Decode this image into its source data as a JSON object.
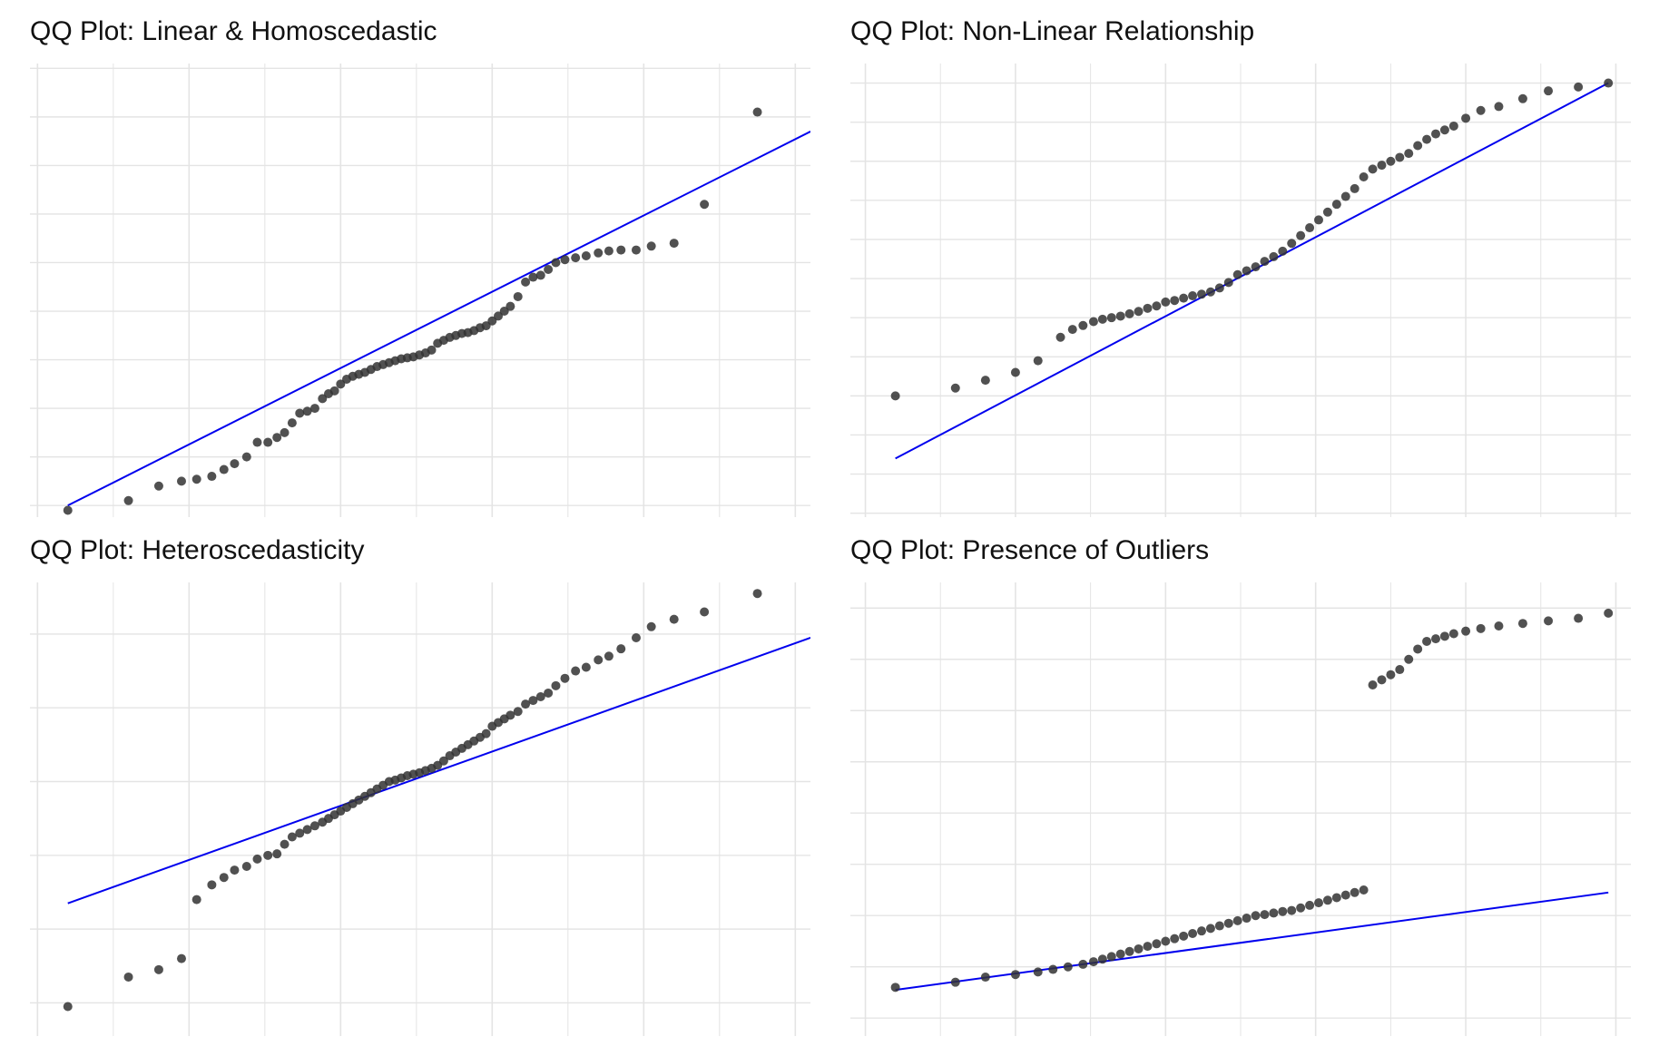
{
  "chart_data": [
    {
      "type": "scatter",
      "title": "QQ Plot: Linear & Homoscedastic",
      "xlabel": "",
      "ylabel": "",
      "xlim": [
        -2.55,
        2.6
      ],
      "ylim": [
        -2.37,
        2.3
      ],
      "grid": true,
      "x_grid": [
        -2.5,
        -2,
        -1.5,
        -1,
        -0.5,
        0,
        0.5,
        1,
        1.5,
        2,
        2.5
      ],
      "y_grid": [
        -2.25,
        -1.75,
        -1.25,
        -0.75,
        -0.25,
        0.25,
        0.75,
        1.25,
        1.75,
        2.25
      ],
      "reference_line": {
        "x": [
          -2.3,
          2.6
        ],
        "y": [
          -2.25,
          1.6
        ]
      },
      "colors": {
        "points": "#333333",
        "line": "#0000ee",
        "grid": "#e4e4e4"
      },
      "points": {
        "x": [
          -2.3,
          -1.9,
          -1.7,
          -1.55,
          -1.45,
          -1.35,
          -1.27,
          -1.2,
          -1.12,
          -1.05,
          -0.98,
          -0.92,
          -0.87,
          -0.82,
          -0.77,
          -0.72,
          -0.67,
          -0.62,
          -0.58,
          -0.54,
          -0.5,
          -0.46,
          -0.42,
          -0.38,
          -0.34,
          -0.3,
          -0.26,
          -0.22,
          -0.18,
          -0.14,
          -0.1,
          -0.06,
          -0.02,
          0.02,
          0.06,
          0.1,
          0.14,
          0.18,
          0.22,
          0.26,
          0.3,
          0.34,
          0.38,
          0.42,
          0.46,
          0.5,
          0.54,
          0.58,
          0.62,
          0.67,
          0.72,
          0.77,
          0.82,
          0.87,
          0.92,
          0.98,
          1.05,
          1.12,
          1.2,
          1.27,
          1.35,
          1.45,
          1.55,
          1.7,
          1.9,
          2.25
        ],
        "y": [
          -2.3,
          -2.2,
          -2.05,
          -2.0,
          -1.98,
          -1.95,
          -1.88,
          -1.82,
          -1.75,
          -1.6,
          -1.6,
          -1.55,
          -1.5,
          -1.4,
          -1.3,
          -1.28,
          -1.25,
          -1.15,
          -1.1,
          -1.07,
          -1.0,
          -0.95,
          -0.92,
          -0.9,
          -0.88,
          -0.85,
          -0.82,
          -0.8,
          -0.78,
          -0.76,
          -0.74,
          -0.73,
          -0.72,
          -0.7,
          -0.68,
          -0.65,
          -0.58,
          -0.55,
          -0.52,
          -0.5,
          -0.48,
          -0.47,
          -0.45,
          -0.42,
          -0.4,
          -0.35,
          -0.3,
          -0.25,
          -0.2,
          -0.1,
          0.05,
          0.1,
          0.12,
          0.18,
          0.25,
          0.28,
          0.3,
          0.32,
          0.35,
          0.37,
          0.38,
          0.38,
          0.42,
          0.45,
          0.85,
          1.8
        ]
      }
    },
    {
      "type": "scatter",
      "title": "QQ Plot: Non-Linear Relationship",
      "xlabel": "",
      "ylabel": "",
      "xlim": [
        -2.6,
        2.6
      ],
      "ylim": [
        -3.05,
        2.75
      ],
      "grid": true,
      "x_grid": [
        -2.5,
        -2,
        -1.5,
        -1,
        -0.5,
        0,
        0.5,
        1,
        1.5,
        2,
        2.5
      ],
      "y_grid": [
        -3.0,
        -2.5,
        -2.0,
        -1.5,
        -1.0,
        -0.5,
        0.0,
        0.5,
        1.0,
        1.5,
        2.0,
        2.5
      ],
      "reference_line": {
        "x": [
          -2.3,
          2.45
        ],
        "y": [
          -2.3,
          2.5
        ]
      },
      "colors": {
        "points": "#333333",
        "line": "#0000ee",
        "grid": "#e4e4e4"
      },
      "points": {
        "x": [
          -2.3,
          -1.9,
          -1.7,
          -1.5,
          -1.35,
          -1.2,
          -1.12,
          -1.05,
          -0.98,
          -0.92,
          -0.86,
          -0.8,
          -0.74,
          -0.68,
          -0.62,
          -0.56,
          -0.5,
          -0.44,
          -0.38,
          -0.32,
          -0.26,
          -0.2,
          -0.14,
          -0.08,
          -0.02,
          0.04,
          0.1,
          0.16,
          0.22,
          0.28,
          0.34,
          0.4,
          0.46,
          0.52,
          0.58,
          0.64,
          0.7,
          0.76,
          0.82,
          0.88,
          0.94,
          1.0,
          1.06,
          1.12,
          1.18,
          1.24,
          1.3,
          1.36,
          1.42,
          1.5,
          1.6,
          1.72,
          1.88,
          2.05,
          2.25,
          2.45
        ],
        "y": [
          -1.5,
          -1.4,
          -1.3,
          -1.2,
          -1.05,
          -0.75,
          -0.65,
          -0.6,
          -0.55,
          -0.52,
          -0.5,
          -0.48,
          -0.45,
          -0.42,
          -0.38,
          -0.35,
          -0.3,
          -0.28,
          -0.25,
          -0.22,
          -0.2,
          -0.17,
          -0.12,
          -0.05,
          0.05,
          0.1,
          0.15,
          0.22,
          0.28,
          0.35,
          0.45,
          0.55,
          0.65,
          0.75,
          0.85,
          0.95,
          1.05,
          1.15,
          1.3,
          1.4,
          1.45,
          1.5,
          1.55,
          1.6,
          1.7,
          1.78,
          1.85,
          1.9,
          1.95,
          2.05,
          2.15,
          2.2,
          2.3,
          2.4,
          2.45,
          2.5
        ]
      }
    },
    {
      "type": "scatter",
      "title": "QQ Plot: Heteroscedasticity",
      "xlabel": "",
      "ylabel": "",
      "xlim": [
        -2.55,
        2.6
      ],
      "ylim": [
        -3.45,
        2.7
      ],
      "grid": true,
      "x_grid": [
        -2.5,
        -2,
        -1.5,
        -1,
        -0.5,
        0,
        0.5,
        1,
        1.5,
        2,
        2.5
      ],
      "y_grid": [
        -3.0,
        -2.0,
        -1.0,
        0.0,
        1.0,
        2.0
      ],
      "reference_line": {
        "x": [
          -2.3,
          2.6
        ],
        "y": [
          -1.65,
          1.95
        ]
      },
      "colors": {
        "points": "#333333",
        "line": "#0000ee",
        "grid": "#e4e4e4"
      },
      "points": {
        "x": [
          -2.3,
          -1.9,
          -1.7,
          -1.55,
          -1.45,
          -1.35,
          -1.27,
          -1.2,
          -1.12,
          -1.05,
          -0.98,
          -0.92,
          -0.87,
          -0.82,
          -0.77,
          -0.72,
          -0.67,
          -0.62,
          -0.58,
          -0.54,
          -0.5,
          -0.46,
          -0.42,
          -0.38,
          -0.34,
          -0.3,
          -0.26,
          -0.22,
          -0.18,
          -0.14,
          -0.1,
          -0.06,
          -0.02,
          0.02,
          0.06,
          0.1,
          0.14,
          0.18,
          0.22,
          0.26,
          0.3,
          0.34,
          0.38,
          0.42,
          0.46,
          0.5,
          0.54,
          0.58,
          0.62,
          0.67,
          0.72,
          0.77,
          0.82,
          0.87,
          0.92,
          0.98,
          1.05,
          1.12,
          1.2,
          1.27,
          1.35,
          1.45,
          1.55,
          1.7,
          1.9,
          2.25
        ],
        "y": [
          -3.05,
          -2.65,
          -2.55,
          -2.4,
          -1.6,
          -1.4,
          -1.3,
          -1.2,
          -1.15,
          -1.05,
          -1.0,
          -0.98,
          -0.85,
          -0.75,
          -0.7,
          -0.65,
          -0.6,
          -0.55,
          -0.5,
          -0.45,
          -0.4,
          -0.35,
          -0.3,
          -0.25,
          -0.2,
          -0.15,
          -0.1,
          -0.05,
          0.0,
          0.02,
          0.05,
          0.08,
          0.1,
          0.12,
          0.15,
          0.18,
          0.22,
          0.28,
          0.35,
          0.4,
          0.45,
          0.5,
          0.55,
          0.6,
          0.65,
          0.75,
          0.8,
          0.85,
          0.9,
          0.95,
          1.05,
          1.1,
          1.15,
          1.2,
          1.3,
          1.4,
          1.5,
          1.55,
          1.65,
          1.7,
          1.8,
          1.95,
          2.1,
          2.2,
          2.3,
          2.55
        ]
      }
    },
    {
      "type": "scatter",
      "title": "QQ Plot: Presence of Outliers",
      "xlabel": "",
      "ylabel": "",
      "xlim": [
        -2.6,
        2.6
      ],
      "ylim": [
        -2.35,
        6.5
      ],
      "grid": true,
      "x_grid": [
        -2.5,
        -2,
        -1.5,
        -1,
        -0.5,
        0,
        0.5,
        1,
        1.5,
        2,
        2.5
      ],
      "y_grid": [
        -2.0,
        -1.0,
        0.0,
        1.0,
        2.0,
        3.0,
        4.0,
        5.0,
        6.0
      ],
      "reference_line": {
        "x": [
          -2.3,
          2.45
        ],
        "y": [
          -1.45,
          0.45
        ]
      },
      "colors": {
        "points": "#333333",
        "line": "#0000ee",
        "grid": "#e4e4e4"
      },
      "points": {
        "x": [
          -2.3,
          -1.9,
          -1.7,
          -1.5,
          -1.35,
          -1.25,
          -1.15,
          -1.05,
          -0.98,
          -0.92,
          -0.86,
          -0.8,
          -0.74,
          -0.68,
          -0.62,
          -0.56,
          -0.5,
          -0.44,
          -0.38,
          -0.32,
          -0.26,
          -0.2,
          -0.14,
          -0.08,
          -0.02,
          0.04,
          0.1,
          0.16,
          0.22,
          0.28,
          0.34,
          0.4,
          0.46,
          0.52,
          0.58,
          0.64,
          0.7,
          0.76,
          0.82,
          0.88,
          0.94,
          1.0,
          1.06,
          1.12,
          1.18,
          1.24,
          1.3,
          1.36,
          1.42,
          1.5,
          1.6,
          1.72,
          1.88,
          2.05,
          2.25,
          2.45
        ],
        "y": [
          -1.4,
          -1.3,
          -1.2,
          -1.15,
          -1.1,
          -1.05,
          -1.0,
          -0.95,
          -0.9,
          -0.85,
          -0.8,
          -0.75,
          -0.7,
          -0.65,
          -0.6,
          -0.55,
          -0.5,
          -0.45,
          -0.4,
          -0.35,
          -0.3,
          -0.25,
          -0.2,
          -0.15,
          -0.1,
          -0.05,
          0.0,
          0.02,
          0.05,
          0.08,
          0.1,
          0.15,
          0.2,
          0.25,
          0.3,
          0.35,
          0.4,
          0.45,
          0.5,
          4.5,
          4.6,
          4.7,
          4.8,
          5.0,
          5.2,
          5.35,
          5.4,
          5.45,
          5.5,
          5.55,
          5.6,
          5.65,
          5.7,
          5.75,
          5.8,
          5.9
        ]
      }
    }
  ]
}
